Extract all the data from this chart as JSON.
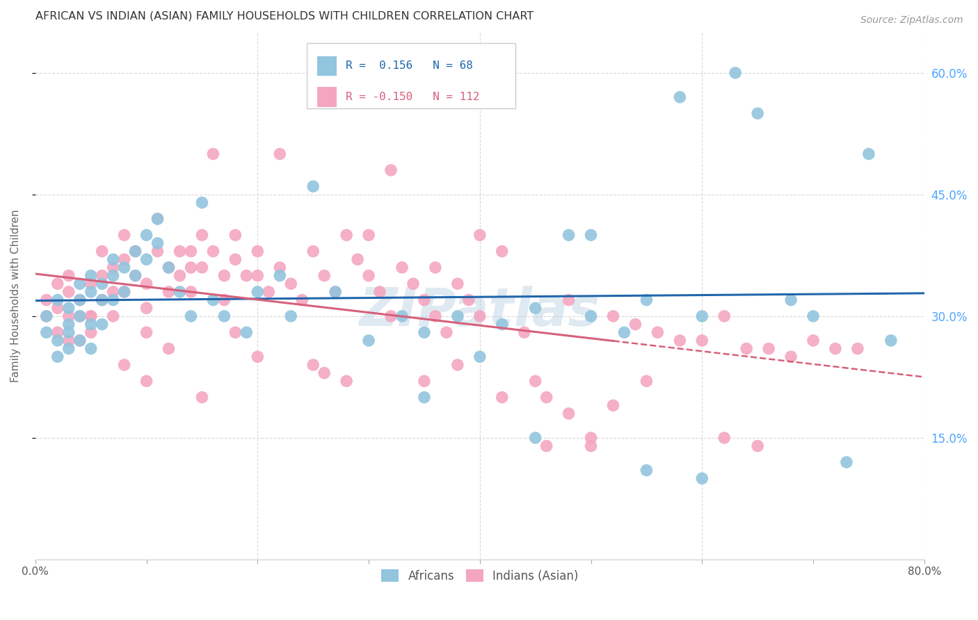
{
  "title": "AFRICAN VS INDIAN (ASIAN) FAMILY HOUSEHOLDS WITH CHILDREN CORRELATION CHART",
  "source": "Source: ZipAtlas.com",
  "ylabel": "Family Households with Children",
  "xlim": [
    0.0,
    0.8
  ],
  "ylim": [
    0.0,
    0.65
  ],
  "ytick_positions": [
    0.15,
    0.3,
    0.45,
    0.6
  ],
  "ytick_labels_right": [
    "15.0%",
    "30.0%",
    "45.0%",
    "60.0%"
  ],
  "xtick_positions": [
    0.0,
    0.1,
    0.2,
    0.3,
    0.4,
    0.5,
    0.6,
    0.7,
    0.8
  ],
  "xtick_labels": [
    "0.0%",
    "",
    "",
    "",
    "",
    "",
    "",
    "",
    "80.0%"
  ],
  "blue_color": "#92c5de",
  "pink_color": "#f4a6c0",
  "blue_line_color": "#2166ac",
  "pink_line_color": "#d6607a",
  "watermark": "ZIPatlas",
  "background_color": "#ffffff",
  "grid_color": "#d8d8d8",
  "title_color": "#333333",
  "axis_label_color": "#666666",
  "right_tick_color": "#4da6ff",
  "source_color": "#999999",
  "africans_x": [
    0.01,
    0.01,
    0.02,
    0.02,
    0.02,
    0.03,
    0.03,
    0.03,
    0.03,
    0.04,
    0.04,
    0.04,
    0.04,
    0.05,
    0.05,
    0.05,
    0.05,
    0.06,
    0.06,
    0.06,
    0.07,
    0.07,
    0.07,
    0.08,
    0.08,
    0.09,
    0.09,
    0.1,
    0.1,
    0.11,
    0.11,
    0.12,
    0.13,
    0.14,
    0.15,
    0.16,
    0.17,
    0.19,
    0.2,
    0.22,
    0.23,
    0.25,
    0.27,
    0.3,
    0.33,
    0.35,
    0.38,
    0.42,
    0.45,
    0.48,
    0.5,
    0.53,
    0.55,
    0.58,
    0.6,
    0.63,
    0.65,
    0.68,
    0.7,
    0.73,
    0.75,
    0.77,
    0.35,
    0.4,
    0.45,
    0.5,
    0.55,
    0.6
  ],
  "africans_y": [
    0.3,
    0.28,
    0.32,
    0.27,
    0.25,
    0.31,
    0.29,
    0.26,
    0.28,
    0.34,
    0.32,
    0.3,
    0.27,
    0.35,
    0.33,
    0.29,
    0.26,
    0.34,
    0.32,
    0.29,
    0.37,
    0.35,
    0.32,
    0.36,
    0.33,
    0.38,
    0.35,
    0.4,
    0.37,
    0.42,
    0.39,
    0.36,
    0.33,
    0.3,
    0.44,
    0.32,
    0.3,
    0.28,
    0.33,
    0.35,
    0.3,
    0.46,
    0.33,
    0.27,
    0.3,
    0.28,
    0.3,
    0.29,
    0.31,
    0.4,
    0.3,
    0.28,
    0.32,
    0.57,
    0.3,
    0.6,
    0.55,
    0.32,
    0.3,
    0.12,
    0.5,
    0.27,
    0.2,
    0.25,
    0.15,
    0.4,
    0.11,
    0.1
  ],
  "indians_x": [
    0.01,
    0.01,
    0.02,
    0.02,
    0.02,
    0.03,
    0.03,
    0.03,
    0.03,
    0.04,
    0.04,
    0.04,
    0.05,
    0.05,
    0.05,
    0.06,
    0.06,
    0.06,
    0.07,
    0.07,
    0.07,
    0.08,
    0.08,
    0.08,
    0.09,
    0.09,
    0.1,
    0.1,
    0.1,
    0.11,
    0.11,
    0.12,
    0.12,
    0.13,
    0.13,
    0.14,
    0.14,
    0.15,
    0.15,
    0.16,
    0.17,
    0.17,
    0.18,
    0.18,
    0.19,
    0.2,
    0.2,
    0.21,
    0.22,
    0.23,
    0.24,
    0.25,
    0.26,
    0.27,
    0.28,
    0.29,
    0.3,
    0.31,
    0.32,
    0.33,
    0.34,
    0.35,
    0.36,
    0.37,
    0.38,
    0.39,
    0.4,
    0.42,
    0.44,
    0.46,
    0.48,
    0.5,
    0.52,
    0.54,
    0.56,
    0.58,
    0.6,
    0.62,
    0.64,
    0.66,
    0.68,
    0.7,
    0.72,
    0.74,
    0.62,
    0.5,
    0.4,
    0.3,
    0.2,
    0.15,
    0.1,
    0.08,
    0.05,
    0.12,
    0.18,
    0.25,
    0.35,
    0.45,
    0.55,
    0.65,
    0.22,
    0.32,
    0.42,
    0.52,
    0.28,
    0.16,
    0.38,
    0.48,
    0.14,
    0.26,
    0.36,
    0.46
  ],
  "indians_y": [
    0.32,
    0.3,
    0.34,
    0.31,
    0.28,
    0.33,
    0.3,
    0.27,
    0.35,
    0.32,
    0.3,
    0.27,
    0.34,
    0.3,
    0.28,
    0.38,
    0.35,
    0.32,
    0.36,
    0.33,
    0.3,
    0.4,
    0.37,
    0.33,
    0.38,
    0.35,
    0.34,
    0.31,
    0.28,
    0.42,
    0.38,
    0.36,
    0.33,
    0.38,
    0.35,
    0.36,
    0.33,
    0.4,
    0.36,
    0.38,
    0.35,
    0.32,
    0.4,
    0.37,
    0.35,
    0.38,
    0.35,
    0.33,
    0.36,
    0.34,
    0.32,
    0.38,
    0.35,
    0.33,
    0.4,
    0.37,
    0.35,
    0.33,
    0.3,
    0.36,
    0.34,
    0.32,
    0.3,
    0.28,
    0.34,
    0.32,
    0.3,
    0.38,
    0.28,
    0.14,
    0.32,
    0.14,
    0.3,
    0.29,
    0.28,
    0.27,
    0.27,
    0.3,
    0.26,
    0.26,
    0.25,
    0.27,
    0.26,
    0.26,
    0.15,
    0.15,
    0.4,
    0.4,
    0.25,
    0.2,
    0.22,
    0.24,
    0.3,
    0.26,
    0.28,
    0.24,
    0.22,
    0.22,
    0.22,
    0.14,
    0.5,
    0.48,
    0.2,
    0.19,
    0.22,
    0.5,
    0.24,
    0.18,
    0.38,
    0.23,
    0.36,
    0.2
  ]
}
